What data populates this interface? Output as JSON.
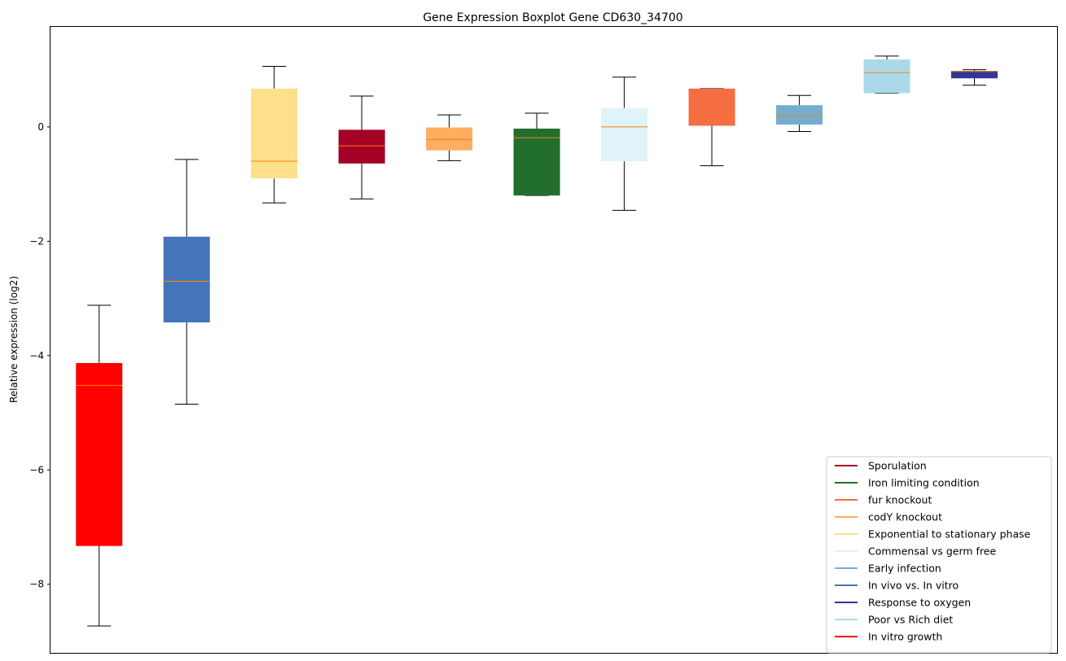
{
  "chart_data": {
    "type": "boxplot",
    "title": "Gene Expression Boxplot Gene CD630_34700",
    "xlabel": "",
    "ylabel": "Relative expression (log2)",
    "ylim": [
      -9.2,
      1.75
    ],
    "yticks": [
      0,
      -2,
      -4,
      -6,
      -8
    ],
    "ytick_labels": [
      "0",
      "−2",
      "−4",
      "−6",
      "−8"
    ],
    "median_color": "#ff7f0e",
    "whisker_color": "#000000",
    "boxes": [
      {
        "name": "In vitro growth",
        "color": "#ff0000",
        "whisker_low": -8.73,
        "q1": -7.33,
        "median": -4.52,
        "q3": -4.13,
        "whisker_high": -3.12
      },
      {
        "name": "In vivo vs. In vitro",
        "color": "#4575b8",
        "whisker_low": -4.85,
        "q1": -3.42,
        "median": -2.7,
        "q3": -1.92,
        "whisker_high": -0.57
      },
      {
        "name": "Exponential to stationary phase",
        "color": "#fee08b",
        "whisker_low": -1.33,
        "q1": -0.9,
        "median": -0.6,
        "q3": 0.67,
        "whisker_high": 1.06
      },
      {
        "name": "Sporulation",
        "color": "#a50026",
        "whisker_low": -1.26,
        "q1": -0.64,
        "median": -0.33,
        "q3": -0.05,
        "whisker_high": 0.54
      },
      {
        "name": "codY knockout",
        "color": "#fdae61",
        "whisker_low": -0.59,
        "q1": -0.41,
        "median": -0.22,
        "q3": -0.01,
        "whisker_high": 0.21
      },
      {
        "name": "Iron limiting condition",
        "color": "#216e2d",
        "whisker_low": -1.2,
        "q1": -1.2,
        "median": -0.19,
        "q3": -0.03,
        "whisker_high": 0.24
      },
      {
        "name": "Commensal vs germ free",
        "color": "#e0f3f8",
        "whisker_low": -1.46,
        "q1": -0.6,
        "median": 0.0,
        "q3": 0.33,
        "whisker_high": 0.87
      },
      {
        "name": "fur knockout",
        "color": "#f46d43",
        "whisker_low": -0.68,
        "q1": 0.02,
        "median": 0.16,
        "q3": 0.67,
        "whisker_high": 0.67
      },
      {
        "name": "Early infection",
        "color": "#74add1",
        "whisker_low": -0.08,
        "q1": 0.04,
        "median": 0.19,
        "q3": 0.38,
        "whisker_high": 0.55
      },
      {
        "name": "Poor vs Rich diet",
        "color": "#abd9e9",
        "whisker_low": 0.59,
        "q1": 0.59,
        "median": 0.95,
        "q3": 1.18,
        "whisker_high": 1.24
      },
      {
        "name": "Response to oxygen",
        "color": "#313695",
        "whisker_low": 0.73,
        "q1": 0.85,
        "median": 0.97,
        "q3": 0.98,
        "whisker_high": 1.0
      }
    ],
    "legend": {
      "location": "lower-right",
      "entries": [
        {
          "label": "Sporulation",
          "color": "#a50026"
        },
        {
          "label": "Iron limiting condition",
          "color": "#216e2d"
        },
        {
          "label": "fur knockout",
          "color": "#f46d43"
        },
        {
          "label": "codY knockout",
          "color": "#fdae61"
        },
        {
          "label": "Exponential to stationary phase",
          "color": "#fee08b"
        },
        {
          "label": "Commensal vs germ free",
          "color": "#e0f3f8"
        },
        {
          "label": "Early infection",
          "color": "#74add1"
        },
        {
          "label": "In vivo vs. In vitro",
          "color": "#4575b8"
        },
        {
          "label": "Response to oxygen",
          "color": "#313695"
        },
        {
          "label": "Poor vs Rich diet",
          "color": "#abd9e9"
        },
        {
          "label": "In vitro growth",
          "color": "#ff0000"
        }
      ]
    }
  }
}
